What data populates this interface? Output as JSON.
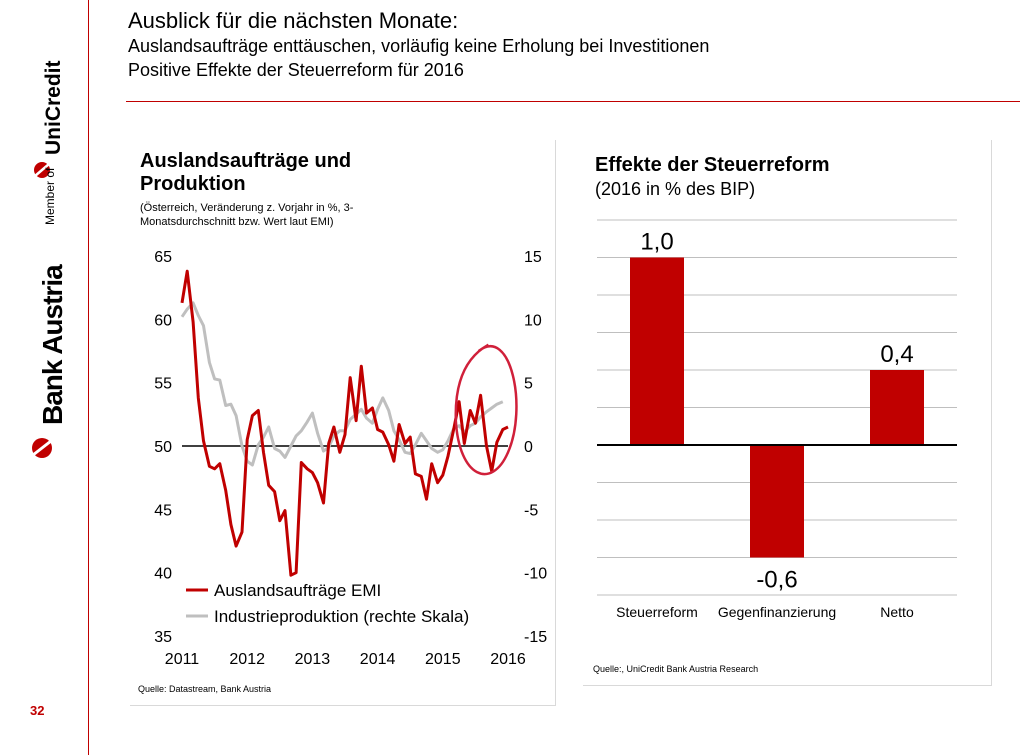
{
  "header": {
    "title": "Ausblick für die nächsten Monate:",
    "line2": "Auslandsaufträge enttäuschen, vorläufig keine Erholung bei Investitionen",
    "line3": "Positive Effekte der Steuerreform für 2016"
  },
  "brand": {
    "bank": "Bank Austria",
    "member_of": "Member of",
    "group": "UniCredit",
    "logo_icon": "unicredit-logo-icon",
    "color": "#c00000"
  },
  "page_number": "32",
  "colors": {
    "accent": "#c00000",
    "series_gray": "#bfbfbf"
  },
  "chart_data": [
    {
      "type": "line",
      "title": "Auslandsaufträge und Produktion",
      "subtitle": "(Österreich, Veränderung z. Vorjahr in %, 3-Monatsdurchschnitt bzw. Wert laut EMI)",
      "x_ticks": [
        "2011",
        "2012",
        "2013",
        "2014",
        "2015",
        "2016"
      ],
      "y_left_ticks": [
        "65",
        "60",
        "55",
        "50",
        "45",
        "40",
        "35"
      ],
      "y_right_ticks": [
        "15",
        "10",
        "5",
        "0",
        "-5",
        "-10",
        "-15"
      ],
      "ylim_left": [
        35,
        65
      ],
      "ylim_right": [
        -15,
        15
      ],
      "xlim": [
        2011.0,
        2016.0
      ],
      "source": "Quelle: Datastream, Bank Austria",
      "series": [
        {
          "name": "Auslandsaufträge EMI",
          "axis": "left",
          "color": "#c00000",
          "x": [
            2011.0,
            2011.08,
            2011.17,
            2011.25,
            2011.33,
            2011.42,
            2011.5,
            2011.58,
            2011.67,
            2011.75,
            2011.83,
            2011.92,
            2012.0,
            2012.08,
            2012.17,
            2012.25,
            2012.33,
            2012.42,
            2012.5,
            2012.58,
            2012.67,
            2012.75,
            2012.83,
            2012.92,
            2013.0,
            2013.08,
            2013.17,
            2013.25,
            2013.33,
            2013.42,
            2013.5,
            2013.58,
            2013.67,
            2013.75,
            2013.83,
            2013.92,
            2014.0,
            2014.08,
            2014.17,
            2014.25,
            2014.33,
            2014.42,
            2014.5,
            2014.58,
            2014.67,
            2014.75,
            2014.83,
            2014.92,
            2015.0,
            2015.08,
            2015.17,
            2015.25,
            2015.33,
            2015.42,
            2015.5,
            2015.58,
            2015.67,
            2015.75,
            2015.83,
            2015.92,
            2016.0
          ],
          "values": [
            61.3,
            63.8,
            59.8,
            53.8,
            50.4,
            48.4,
            48.2,
            48.6,
            46.5,
            43.8,
            42.1,
            43.2,
            50.5,
            52.4,
            52.8,
            49.5,
            46.9,
            46.4,
            44.1,
            44.9,
            39.8,
            40.0,
            48.7,
            48.2,
            47.9,
            47.1,
            45.5,
            50.2,
            51.5,
            49.5,
            50.9,
            55.4,
            52.0,
            56.3,
            52.6,
            53.0,
            51.3,
            51.1,
            50.1,
            48.8,
            51.7,
            50.2,
            50.7,
            47.8,
            47.6,
            45.8,
            48.6,
            47.1,
            47.7,
            49.2,
            51.4,
            53.5,
            50.2,
            52.8,
            51.8,
            54.0,
            50.0,
            48.0,
            50.3,
            51.3,
            51.5
          ]
        },
        {
          "name": "Industrieproduktion (rechte Skala)",
          "axis": "right",
          "color": "#bfbfbf",
          "x": [
            2011.0,
            2011.08,
            2011.17,
            2011.25,
            2011.33,
            2011.42,
            2011.5,
            2011.58,
            2011.67,
            2011.75,
            2011.83,
            2011.92,
            2012.0,
            2012.08,
            2012.17,
            2012.25,
            2012.33,
            2012.42,
            2012.5,
            2012.58,
            2012.67,
            2012.75,
            2012.83,
            2012.92,
            2013.0,
            2013.08,
            2013.17,
            2013.25,
            2013.33,
            2013.42,
            2013.5,
            2013.58,
            2013.67,
            2013.75,
            2013.83,
            2013.92,
            2014.0,
            2014.08,
            2014.17,
            2014.25,
            2014.33,
            2014.42,
            2014.5,
            2014.58,
            2014.67,
            2014.75,
            2014.83,
            2014.92,
            2015.0,
            2015.08,
            2015.17,
            2015.25,
            2015.33,
            2015.42,
            2015.5,
            2015.58,
            2015.67,
            2015.75,
            2015.83,
            2015.92
          ],
          "values": [
            10.2,
            10.8,
            11.3,
            10.3,
            9.5,
            6.6,
            5.3,
            5.2,
            3.2,
            3.3,
            2.4,
            0.0,
            -1.2,
            -1.5,
            0.1,
            0.7,
            1.5,
            -0.2,
            -0.4,
            -0.9,
            0.0,
            0.8,
            1.2,
            1.9,
            2.6,
            1.0,
            -0.4,
            -0.1,
            0.8,
            1.2,
            1.2,
            2.1,
            2.5,
            2.9,
            2.2,
            1.8,
            2.9,
            3.8,
            2.8,
            1.2,
            0.5,
            -0.5,
            -0.6,
            0.1,
            1.0,
            0.4,
            -0.2,
            -0.5,
            -0.3,
            0.4,
            1.4,
            1.6,
            1.1,
            1.6,
            1.8,
            2.3,
            2.7,
            3.0,
            3.3,
            3.5
          ]
        }
      ],
      "annotation": "red circle highlighting recent data"
    },
    {
      "type": "bar",
      "title": "Effekte der Steuerreform",
      "subtitle": "(2016 in % des BIP)",
      "categories": [
        "Steuerreform",
        "Gegenfinanzierung",
        "Netto"
      ],
      "values": [
        1.0,
        -0.6,
        0.4
      ],
      "value_labels": [
        "1,0",
        "-0,6",
        "0,4"
      ],
      "ylim": [
        -0.8,
        1.2
      ],
      "grid": true,
      "color": "#c00000",
      "source": "Quelle:, UniCredit Bank Austria Research"
    }
  ]
}
